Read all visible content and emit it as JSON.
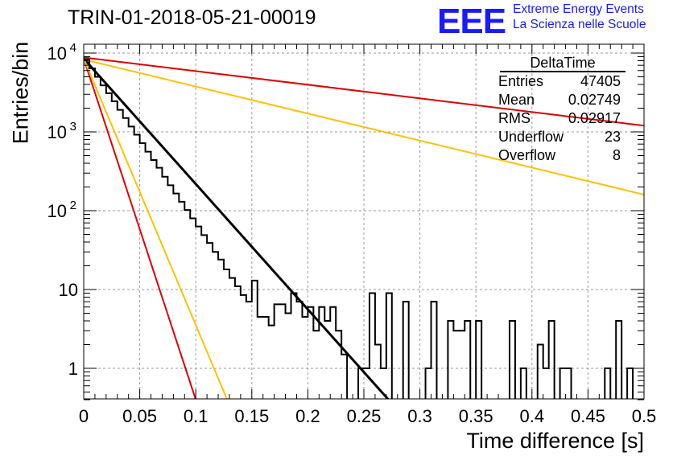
{
  "header": {
    "title": "TRIN-01-2018-05-21-00019",
    "logo_mark": "EEE",
    "logo_line1": "Extreme Energy Events",
    "logo_line2": "La Scienza nelle Scuole",
    "logo_color": "#1a1aff"
  },
  "stats": {
    "name": "DeltaTime",
    "rows": [
      {
        "label": "Entries",
        "value": "47405"
      },
      {
        "label": "Mean",
        "value": "0.02749"
      },
      {
        "label": "RMS",
        "value": "0.02917"
      },
      {
        "label": "Underflow",
        "value": "23"
      },
      {
        "label": "Overflow",
        "value": "8"
      }
    ]
  },
  "chart_data": {
    "type": "line",
    "title": "TRIN-01-2018-05-21-00019",
    "xlabel": "Time difference [s]",
    "ylabel": "Entries/bin",
    "xlim": [
      0,
      0.5
    ],
    "ylim": [
      0.4,
      15000
    ],
    "yscale": "log",
    "grid": true,
    "x_ticks": [
      "0",
      "0.05",
      "0.1",
      "0.15",
      "0.2",
      "0.25",
      "0.3",
      "0.35",
      "0.4",
      "0.45",
      "0.5"
    ],
    "y_ticks": [
      {
        "value": 1,
        "label": "1"
      },
      {
        "value": 10,
        "label": "10"
      },
      {
        "value": 100,
        "label": "10",
        "exp": "2"
      },
      {
        "value": 1000,
        "label": "10",
        "exp": "3"
      },
      {
        "value": 10000,
        "label": "10",
        "exp": "4"
      }
    ],
    "histogram": {
      "bin_width": 0.005,
      "counts": [
        8300,
        6400,
        5000,
        3900,
        3100,
        2450,
        1900,
        1500,
        1170,
        920,
        720,
        560,
        440,
        350,
        270,
        210,
        165,
        130,
        102,
        80,
        63,
        49,
        39,
        30,
        24,
        18,
        14,
        11,
        8.5,
        7,
        13,
        4.5,
        4.5,
        3.5,
        6.5,
        6.5,
        5,
        9,
        7,
        4.5,
        6,
        3,
        6,
        4,
        6,
        3,
        1.5,
        0,
        0,
        1,
        1,
        9,
        2,
        1,
        9,
        0,
        0,
        7,
        0,
        0,
        0,
        1,
        7,
        0,
        0,
        4,
        3,
        3,
        4,
        0,
        4,
        0,
        0,
        0,
        0,
        0,
        4,
        0,
        1,
        0,
        0,
        2,
        1,
        4,
        0,
        1,
        1,
        0,
        0,
        0,
        0,
        0,
        0,
        1,
        0,
        4,
        0,
        1,
        0,
        0
      ],
      "color": "#000000"
    },
    "fits": [
      {
        "x": [
          0,
          0.272
        ],
        "y": [
          8500,
          0.4
        ],
        "color": "#000000",
        "width": 3
      },
      {
        "x": [
          0,
          0.1
        ],
        "y": [
          8500,
          0.4
        ],
        "color": "#e00000",
        "width": 2
      },
      {
        "x": [
          0,
          0.128
        ],
        "y": [
          8500,
          0.4
        ],
        "color": "#ffc000",
        "width": 2
      },
      {
        "x": [
          0,
          0.5
        ],
        "y": [
          8800,
          1200
        ],
        "color": "#e00000",
        "width": 2
      },
      {
        "x": [
          0,
          0.5
        ],
        "y": [
          8300,
          160
        ],
        "color": "#ffc000",
        "width": 2
      }
    ]
  }
}
